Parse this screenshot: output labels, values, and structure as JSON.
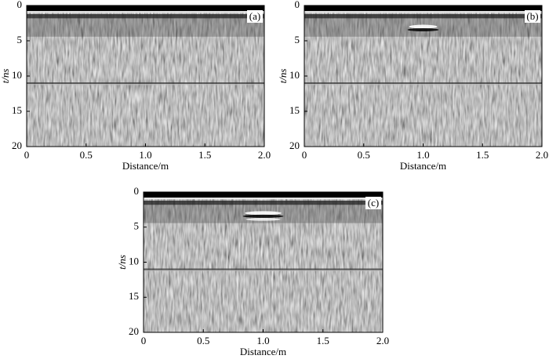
{
  "chart_data": [
    {
      "type": "radargram",
      "panel_label": "(a)",
      "x_label": "Distance/m",
      "y_label": "t/ns",
      "xlim": [
        0,
        2
      ],
      "xticks": [
        0,
        0.5,
        {
          "value": 1,
          "label": "1.0"
        },
        1.5,
        {
          "value": 2,
          "label": "2.0"
        }
      ],
      "ylim": [
        20,
        0
      ],
      "yticks": [
        0,
        5,
        10,
        15,
        20
      ]
    },
    {
      "type": "radargram",
      "panel_label": "(b)",
      "x_label": "Distance/m",
      "y_label": "t/ns",
      "xlim": [
        0,
        2
      ],
      "xticks": [
        0,
        0.5,
        {
          "value": 1,
          "label": "1.0"
        },
        1.5,
        {
          "value": 2,
          "label": "2.0"
        }
      ],
      "ylim": [
        20,
        0
      ],
      "yticks": [
        0,
        5,
        10,
        15,
        20
      ]
    },
    {
      "type": "radargram",
      "panel_label": "(c)",
      "x_label": "Distance/m",
      "y_label": "t/ns",
      "xlim": [
        0,
        2
      ],
      "xticks": [
        0,
        0.5,
        {
          "value": 1,
          "label": "1.0"
        },
        1.5,
        {
          "value": 2,
          "label": "2.0"
        }
      ],
      "ylim": [
        20,
        0
      ],
      "yticks": [
        0,
        5,
        10,
        15,
        20
      ]
    }
  ]
}
